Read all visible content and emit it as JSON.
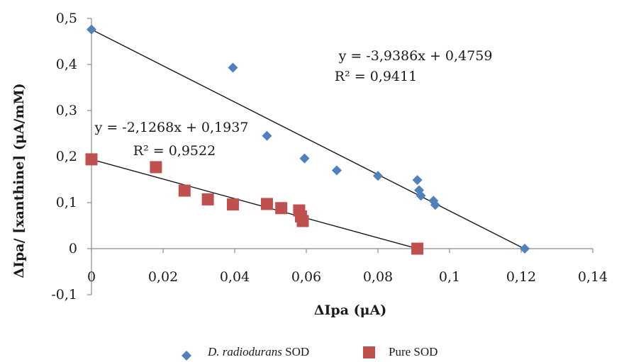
{
  "chart_data": {
    "type": "scatter",
    "xlabel": "ΔIpa (μA)",
    "ylabel": "ΔIpa/ [xanthine] (μA/mM)",
    "xlim": [
      0,
      0.14
    ],
    "ylim": [
      -0.1,
      0.5
    ],
    "x_ticks": [
      0,
      0.02,
      0.04,
      0.06,
      0.08,
      0.1,
      0.12,
      0.14
    ],
    "x_tick_labels": [
      "0",
      "0,02",
      "0,04",
      "0,06",
      "0,08",
      "0,1",
      "0,12",
      "0,14"
    ],
    "y_ticks": [
      -0.1,
      0,
      0.1,
      0.2,
      0.3,
      0.4,
      0.5
    ],
    "y_tick_labels": [
      "-0,1",
      "0",
      "0,1",
      "0,2",
      "0,3",
      "0,4",
      "0,5"
    ],
    "grid": false,
    "legend_position": "bottom",
    "series": [
      {
        "name": "D. radiodurans SOD",
        "legend_italic": "D. radiodurans",
        "legend_plain": " SOD",
        "marker": "diamond",
        "color": "#4F81BD",
        "x": [
          0.0,
          0.0395,
          0.049,
          0.0595,
          0.0685,
          0.08,
          0.091,
          0.0915,
          0.092,
          0.0955,
          0.096,
          0.121
        ],
        "y": [
          0.476,
          0.393,
          0.245,
          0.196,
          0.17,
          0.158,
          0.149,
          0.127,
          0.115,
          0.104,
          0.095,
          0.0
        ],
        "trendline": {
          "slope": -3.9386,
          "intercept": 0.4759,
          "x_range": [
            0.0,
            0.121
          ],
          "equation": "y = -3,9386x + 0,4759",
          "r2_label": "R² = 0,9411"
        }
      },
      {
        "name": "Pure SOD",
        "marker": "square",
        "color": "#C0504D",
        "x": [
          0.0,
          0.018,
          0.026,
          0.0325,
          0.0395,
          0.049,
          0.053,
          0.058,
          0.0585,
          0.059,
          0.091
        ],
        "y": [
          0.194,
          0.177,
          0.126,
          0.107,
          0.096,
          0.097,
          0.088,
          0.083,
          0.07,
          0.06,
          0.0
        ],
        "trendline": {
          "slope": -2.1268,
          "intercept": 0.1937,
          "x_range": [
            0.0,
            0.091
          ],
          "equation": "y = -2,1268x + 0,1937",
          "r2_label": "R² = 0,9522"
        }
      }
    ]
  }
}
